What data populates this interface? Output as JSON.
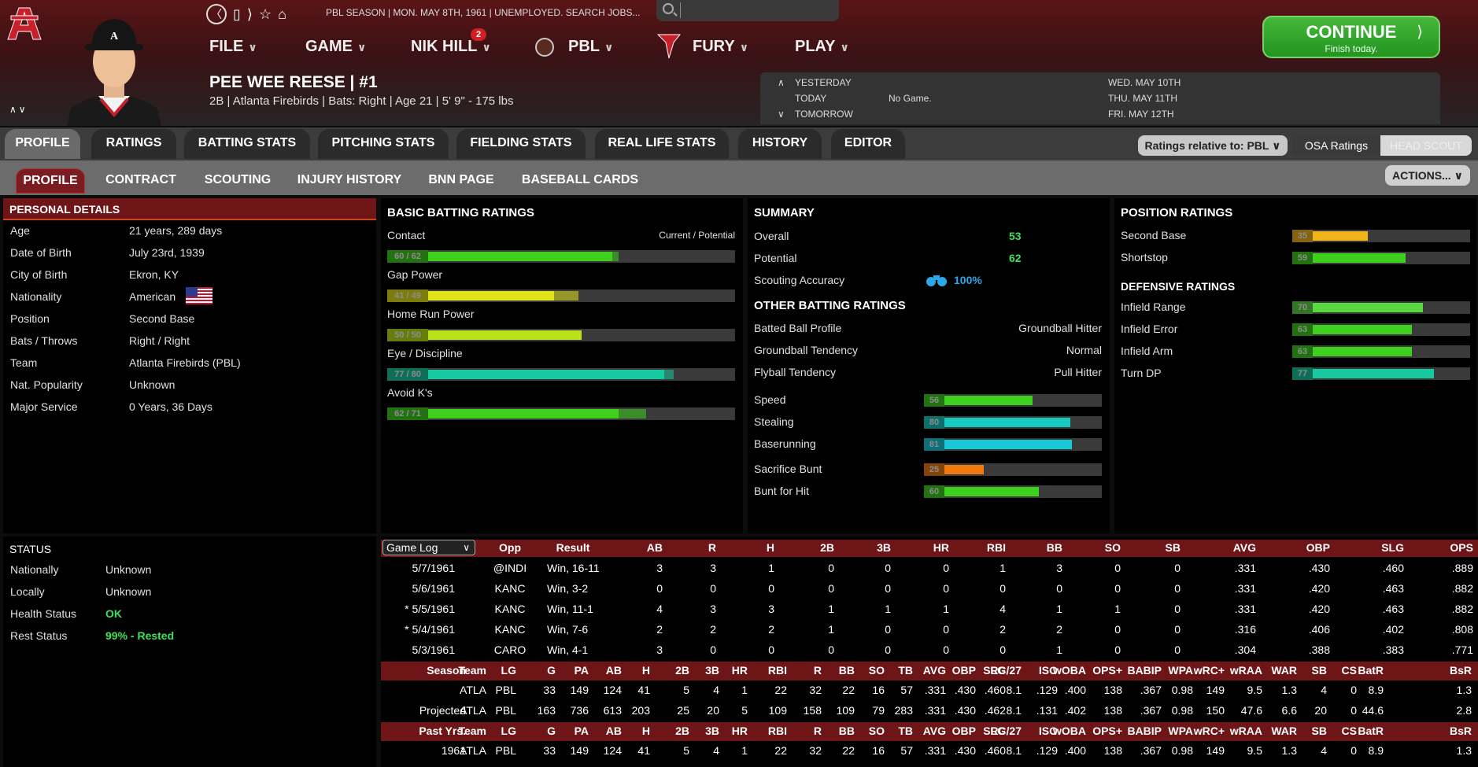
{
  "crumb": "PBL SEASON  |  MON. MAY 8TH, 1961  |  UNEMPLOYED. SEARCH JOBS...",
  "search": {
    "placeholder": ""
  },
  "menu": [
    "FILE",
    "GAME",
    "NIK HILL",
    "PBL",
    "FURY",
    "PLAY"
  ],
  "badge": "2",
  "continue": {
    "label": "CONTINUE",
    "sub": "Finish today.",
    "arrow": "⟩"
  },
  "player": {
    "name": "PEE WEE REESE  |  #1",
    "info": "2B | Atlanta Firebirds  |  Bats: Right  |  Age 21  |  5' 9\" - 175 lbs"
  },
  "schedule": {
    "yesterday": "YESTERDAY",
    "today": "TODAY",
    "tomorrow": "TOMORROW",
    "today_game": "No Game.",
    "d1": "WED. MAY 10TH",
    "d2": "THU. MAY 11TH",
    "d3": "FRI. MAY 12TH"
  },
  "tabs": [
    "PROFILE",
    "RATINGS",
    "BATTING STATS",
    "PITCHING STATS",
    "FIELDING STATS",
    "REAL LIFE STATS",
    "HISTORY",
    "EDITOR"
  ],
  "subtabs": [
    "PROFILE",
    "CONTRACT",
    "SCOUTING",
    "INJURY HISTORY",
    "BNN PAGE",
    "BASEBALL CARDS"
  ],
  "ratings_rel": "Ratings relative to: PBL",
  "osa": "OSA Ratings",
  "head_scout": "HEAD SCOUT",
  "actions": "ACTIONS...",
  "personal": {
    "title": "PERSONAL DETAILS",
    "rows": [
      [
        "Age",
        "21 years, 289 days"
      ],
      [
        "Date of Birth",
        "July 23rd, 1939"
      ],
      [
        "City of Birth",
        "Ekron, KY"
      ],
      [
        "Nationality",
        "American"
      ],
      [
        "Position",
        "Second Base"
      ],
      [
        "Bats / Throws",
        "Right / Right"
      ],
      [
        "Team",
        "Atlanta Firebirds (PBL)"
      ],
      [
        "Nat. Popularity",
        "Unknown"
      ],
      [
        "Major Service",
        "0 Years, 36 Days"
      ]
    ]
  },
  "status": {
    "title": "STATUS",
    "rows": [
      [
        "Nationally",
        "Unknown"
      ],
      [
        "Locally",
        "Unknown"
      ],
      [
        "Health Status",
        "OK"
      ],
      [
        "Rest Status",
        "99% - Rested"
      ]
    ],
    "health_color": "#3ee05c",
    "rest_color": "#3ee05c"
  },
  "batting": {
    "title": "BASIC BATTING RATINGS",
    "cp": "Current / Potential",
    "items": [
      {
        "label": "Contact",
        "text": "60 / 62",
        "cur": 60,
        "pot": 62,
        "color": "#3fcf1f"
      },
      {
        "label": "Gap Power",
        "text": "41 / 49",
        "cur": 41,
        "pot": 49,
        "color": "#e2e21a"
      },
      {
        "label": "Home Run Power",
        "text": "50 / 50",
        "cur": 50,
        "pot": 50,
        "color": "#b9e21a"
      },
      {
        "label": "Eye / Discipline",
        "text": "77 / 80",
        "cur": 77,
        "pot": 80,
        "color": "#17c9a0"
      },
      {
        "label": "Avoid K's",
        "text": "62 / 71",
        "cur": 62,
        "pot": 71,
        "color": "#3fcf1f"
      }
    ]
  },
  "summary": {
    "title": "SUMMARY",
    "overall_l": "Overall",
    "overall": "53",
    "potential_l": "Potential",
    "potential": "62",
    "scout_l": "Scouting Accuracy",
    "scout": "100%",
    "other_title": "OTHER BATTING RATINGS",
    "other": [
      [
        "Batted Ball Profile",
        "Groundball Hitter"
      ],
      [
        "Groundball Tendency",
        "Normal"
      ],
      [
        "Flyball Tendency",
        "Pull Hitter"
      ]
    ],
    "bars": [
      {
        "label": "Speed",
        "v": 56,
        "color": "#3fcf1f"
      },
      {
        "label": "Stealing",
        "v": 80,
        "color": "#17c9c0"
      },
      {
        "label": "Baserunning",
        "v": 81,
        "color": "#17c9d8"
      },
      {
        "label": "Sacrifice Bunt",
        "v": 25,
        "color": "#f07a10"
      },
      {
        "label": "Bunt for Hit",
        "v": 60,
        "color": "#3fcf1f"
      }
    ]
  },
  "position": {
    "title": "POSITION RATINGS",
    "items": [
      {
        "label": "Second Base",
        "v": 35,
        "color": "#f0b41a"
      },
      {
        "label": "Shortstop",
        "v": 59,
        "color": "#3fcf1f"
      }
    ],
    "def_title": "DEFENSIVE RATINGS",
    "def": [
      {
        "label": "Infield Range",
        "v": 70,
        "color": "#5ad840"
      },
      {
        "label": "Infield Error",
        "v": 63,
        "color": "#3fcf1f"
      },
      {
        "label": "Infield Arm",
        "v": 63,
        "color": "#3fcf1f"
      },
      {
        "label": "Turn DP",
        "v": 77,
        "color": "#17c9a0"
      }
    ]
  },
  "gamelog": {
    "select": "Game Log",
    "headers": [
      "Opp",
      "Result",
      "AB",
      "R",
      "H",
      "2B",
      "3B",
      "HR",
      "RBI",
      "BB",
      "SO",
      "SB",
      "AVG",
      "OBP",
      "SLG",
      "OPS"
    ],
    "rows": [
      [
        "5/7/1961",
        "@INDI",
        "Win, 16-11",
        "3",
        "3",
        "1",
        "0",
        "0",
        "0",
        "1",
        "3",
        "0",
        "0",
        ".331",
        ".430",
        ".460",
        ".889"
      ],
      [
        "5/6/1961",
        "KANC",
        "Win, 3-2",
        "0",
        "0",
        "0",
        "0",
        "0",
        "0",
        "0",
        "0",
        "0",
        "0",
        ".331",
        ".420",
        ".463",
        ".882"
      ],
      [
        "* 5/5/1961",
        "KANC",
        "Win, 11-1",
        "4",
        "3",
        "3",
        "1",
        "1",
        "1",
        "4",
        "1",
        "1",
        "0",
        ".331",
        ".420",
        ".463",
        ".882"
      ],
      [
        "* 5/4/1961",
        "KANC",
        "Win, 7-6",
        "2",
        "2",
        "2",
        "1",
        "0",
        "0",
        "2",
        "2",
        "0",
        "0",
        ".316",
        ".406",
        ".402",
        ".808"
      ],
      [
        "5/3/1961",
        "CARO",
        "Win, 4-1",
        "3",
        "0",
        "0",
        "0",
        "0",
        "0",
        "0",
        "1",
        "0",
        "0",
        ".304",
        ".388",
        ".383",
        ".771"
      ]
    ]
  },
  "season": {
    "headers": [
      "Season",
      "Team",
      "LG",
      "G",
      "PA",
      "AB",
      "H",
      "2B",
      "3B",
      "HR",
      "RBI",
      "R",
      "BB",
      "SO",
      "TB",
      "AVG",
      "OBP",
      "SLG",
      "RC/27",
      "ISO",
      "wOBA",
      "OPS+",
      "BABIP",
      "WPA",
      "wRC+",
      "wRAA",
      "WAR",
      "SB",
      "CS",
      "BatR",
      "BsR"
    ],
    "rows": [
      [
        "",
        "ATLA",
        "PBL",
        "33",
        "149",
        "124",
        "41",
        "5",
        "4",
        "1",
        "22",
        "32",
        "22",
        "16",
        "57",
        ".331",
        ".430",
        ".460",
        "8.1",
        ".129",
        ".400",
        "138",
        ".367",
        "0.98",
        "149",
        "9.5",
        "1.3",
        "4",
        "0",
        "8.9",
        "1.3"
      ],
      [
        "Projected",
        "ATLA",
        "PBL",
        "163",
        "736",
        "613",
        "203",
        "25",
        "20",
        "5",
        "109",
        "158",
        "109",
        "79",
        "283",
        ".331",
        ".430",
        ".462",
        "8.1",
        ".131",
        ".402",
        "138",
        ".367",
        "0.98",
        "150",
        "47.6",
        "6.6",
        "20",
        "0",
        "44.6",
        "2.8"
      ]
    ]
  },
  "past": {
    "headers": [
      "Past Yrs.",
      "Team",
      "LG",
      "G",
      "PA",
      "AB",
      "H",
      "2B",
      "3B",
      "HR",
      "RBI",
      "R",
      "BB",
      "SO",
      "TB",
      "AVG",
      "OBP",
      "SLG",
      "RC/27",
      "ISO",
      "wOBA",
      "OPS+",
      "BABIP",
      "WPA",
      "wRC+",
      "wRAA",
      "WAR",
      "SB",
      "CS",
      "BatR",
      "BsR"
    ],
    "rows": [
      [
        "1961",
        "ATLA",
        "PBL",
        "33",
        "149",
        "124",
        "41",
        "5",
        "4",
        "1",
        "22",
        "32",
        "22",
        "16",
        "57",
        ".331",
        ".430",
        ".460",
        "8.1",
        ".129",
        ".400",
        "138",
        ".367",
        "0.98",
        "149",
        "9.5",
        "1.3",
        "4",
        "0",
        "8.9",
        "1.3"
      ]
    ]
  }
}
